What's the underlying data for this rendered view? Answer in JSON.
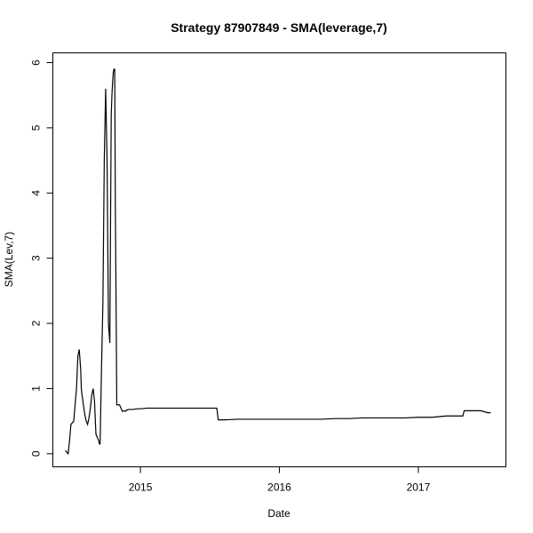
{
  "chart_data": {
    "type": "line",
    "title": "Strategy 87907849 - SMA(leverage,7)",
    "xlabel": "Date",
    "ylabel": "SMA(Lev,7)",
    "x_ticks": [
      {
        "value": 2015.0,
        "label": "2015"
      },
      {
        "value": 2016.0,
        "label": "2016"
      },
      {
        "value": 2017.0,
        "label": "2017"
      }
    ],
    "y_ticks": [
      {
        "value": 0,
        "label": "0"
      },
      {
        "value": 1,
        "label": "1"
      },
      {
        "value": 2,
        "label": "2"
      },
      {
        "value": 3,
        "label": "3"
      },
      {
        "value": 4,
        "label": "4"
      },
      {
        "value": 5,
        "label": "5"
      },
      {
        "value": 6,
        "label": "6"
      }
    ],
    "xlim": [
      2014.37,
      2017.63
    ],
    "ylim": [
      -0.2,
      6.15
    ],
    "grid": false,
    "series": [
      {
        "color": "#000000",
        "x": [
          2014.46,
          2014.48,
          2014.49,
          2014.5,
          2014.52,
          2014.53,
          2014.54,
          2014.55,
          2014.56,
          2014.57,
          2014.575,
          2014.58,
          2014.59,
          2014.6,
          2014.61,
          2014.62,
          2014.63,
          2014.64,
          2014.65,
          2014.66,
          2014.67,
          2014.68,
          2014.69,
          2014.7,
          2014.705,
          2014.71,
          2014.72,
          2014.73,
          2014.74,
          2014.75,
          2014.76,
          2014.77,
          2014.78,
          2014.785,
          2014.79,
          2014.795,
          2014.8,
          2014.805,
          2014.81,
          2014.815,
          2014.82,
          2014.825,
          2014.83,
          2014.835,
          2014.84,
          2014.845,
          2014.85,
          2014.86,
          2014.87,
          2014.88,
          2014.89,
          2014.895,
          2014.9,
          2014.905,
          2014.91,
          2014.93,
          2014.95,
          2014.97,
          2015.0,
          2015.05,
          2015.1,
          2015.15,
          2015.2,
          2015.3,
          2015.4,
          2015.5,
          2015.55,
          2015.56,
          2015.6,
          2015.7,
          2015.8,
          2015.9,
          2016.0,
          2016.1,
          2016.2,
          2016.3,
          2016.4,
          2016.5,
          2016.6,
          2016.7,
          2016.8,
          2016.85,
          2016.9,
          2017.0,
          2017.1,
          2017.2,
          2017.3,
          2017.32,
          2017.33,
          2017.4,
          2017.45,
          2017.5,
          2017.52
        ],
        "y": [
          0.05,
          0.0,
          0.2,
          0.45,
          0.5,
          0.75,
          1.0,
          1.5,
          1.6,
          1.3,
          1.0,
          0.9,
          0.75,
          0.6,
          0.5,
          0.45,
          0.55,
          0.7,
          0.9,
          1.0,
          0.8,
          0.3,
          0.25,
          0.2,
          0.15,
          0.15,
          1.3,
          2.3,
          4.5,
          5.6,
          4.5,
          2.0,
          1.7,
          3.5,
          5.2,
          5.5,
          5.7,
          5.85,
          5.9,
          5.9,
          3.7,
          2.3,
          0.75,
          0.75,
          0.75,
          0.75,
          0.75,
          0.7,
          0.65,
          0.66,
          0.65,
          0.66,
          0.67,
          0.67,
          0.68,
          0.68,
          0.68,
          0.69,
          0.69,
          0.7,
          0.7,
          0.7,
          0.7,
          0.7,
          0.7,
          0.7,
          0.7,
          0.52,
          0.52,
          0.53,
          0.53,
          0.53,
          0.53,
          0.53,
          0.53,
          0.53,
          0.54,
          0.54,
          0.55,
          0.55,
          0.55,
          0.55,
          0.55,
          0.56,
          0.56,
          0.58,
          0.58,
          0.58,
          0.66,
          0.66,
          0.66,
          0.63,
          0.63
        ]
      }
    ]
  }
}
